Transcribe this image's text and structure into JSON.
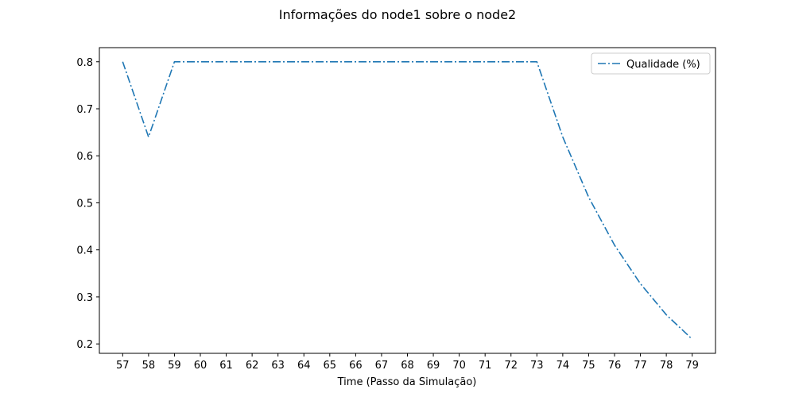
{
  "chart_data": {
    "type": "line",
    "title": "Informações do node1 sobre o node2",
    "xlabel": "Time (Passo da Simulação)",
    "ylabel": "",
    "x": [
      57,
      58,
      59,
      60,
      61,
      62,
      63,
      64,
      65,
      66,
      67,
      68,
      69,
      70,
      71,
      72,
      73,
      74,
      75,
      76,
      77,
      78,
      79
    ],
    "series": [
      {
        "name": "Qualidade (%)",
        "values": [
          0.8,
          0.64,
          0.8,
          0.8,
          0.8,
          0.8,
          0.8,
          0.8,
          0.8,
          0.8,
          0.8,
          0.8,
          0.8,
          0.8,
          0.8,
          0.8,
          0.8,
          0.64,
          0.512,
          0.41,
          0.328,
          0.262,
          0.21
        ],
        "color": "#1f77b4",
        "line_style": "dashdot"
      }
    ],
    "xlim": [
      56.1,
      79.9
    ],
    "ylim": [
      0.18,
      0.83
    ],
    "xticks": [
      57,
      58,
      59,
      60,
      61,
      62,
      63,
      64,
      65,
      66,
      67,
      68,
      69,
      70,
      71,
      72,
      73,
      74,
      75,
      76,
      77,
      78,
      79
    ],
    "yticks": [
      0.2,
      0.3,
      0.4,
      0.5,
      0.6,
      0.7,
      0.8
    ],
    "ytick_labels": [
      "0.2",
      "0.3",
      "0.4",
      "0.5",
      "0.6",
      "0.7",
      "0.8"
    ],
    "grid": false,
    "legend_position": "top-right"
  }
}
